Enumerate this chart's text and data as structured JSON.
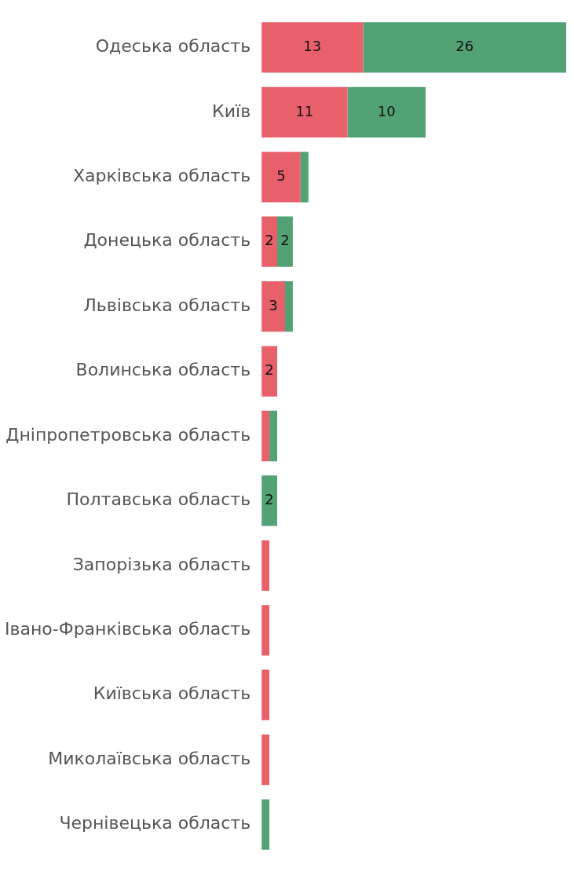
{
  "chart_data": {
    "type": "bar",
    "orientation": "horizontal",
    "stacked": true,
    "legend": false,
    "categories": [
      "Одеська область",
      "Київ",
      "Харківська область",
      "Донецька область",
      "Львівська область",
      "Волинська область",
      "Дніпропетровська область",
      "Полтавська область",
      "Запорізька область",
      "Івано-Франківська область",
      "Київська область",
      "Миколаївська область",
      "Чернівецька область"
    ],
    "series": [
      {
        "color": "#e8606a",
        "values": [
          13,
          11,
          5,
          2,
          3,
          2,
          1,
          0,
          1,
          1,
          1,
          1,
          0
        ],
        "value_labels": [
          "13",
          "11",
          "5",
          "2",
          "3",
          "2",
          null,
          null,
          null,
          null,
          null,
          null,
          null
        ]
      },
      {
        "color": "#52a275",
        "values": [
          26,
          10,
          1,
          2,
          1,
          0,
          1,
          2,
          0,
          0,
          0,
          0,
          1
        ],
        "value_labels": [
          "26",
          "10",
          null,
          "2",
          null,
          null,
          null,
          "2",
          null,
          null,
          null,
          null,
          null
        ]
      }
    ]
  }
}
